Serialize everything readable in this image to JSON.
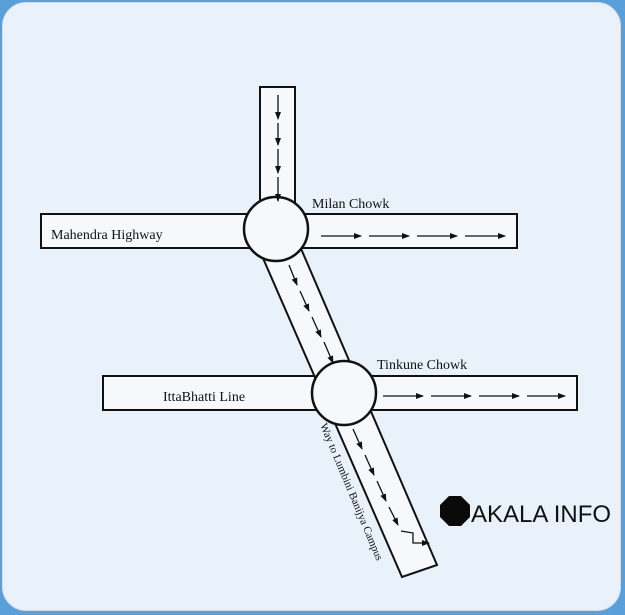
{
  "map": {
    "roads": {
      "mahendra_highway": "Mahendra Highway",
      "ittabhatti_line": "IttaBhatti Line",
      "way_to_campus": "Way to Lumbini Banijya Campus"
    },
    "junctions": {
      "milan_chowk": "Milan Chowk",
      "tinkune_chowk": "Tinkune Chowk"
    },
    "brand": "AKALA INFO"
  },
  "colors": {
    "frame": "#5a9fd8",
    "background": "#e9f1fa",
    "road_fill": "#f6f8fc",
    "ink": "#111111"
  }
}
